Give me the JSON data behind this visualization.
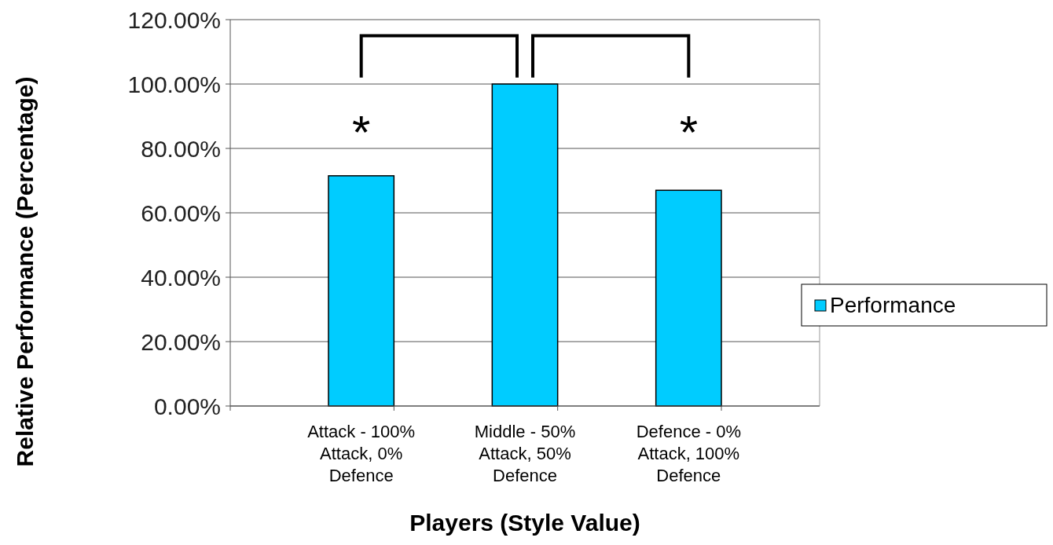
{
  "chart_data": {
    "type": "bar",
    "xlabel": "Players (Style Value)",
    "ylabel": "Relative Performance (Percentage)",
    "categories": [
      "Attack - 100% Attack, 0% Defence",
      "Middle - 50% Attack, 50% Defence",
      "Defence - 0% Attack, 100% Defence"
    ],
    "series": [
      {
        "name": "Performance",
        "color": "#00ccff",
        "values": [
          71.5,
          100,
          67
        ]
      }
    ],
    "ylim": [
      0,
      120
    ],
    "yticks": [
      {
        "value": 0,
        "label": "0.00%"
      },
      {
        "value": 20,
        "label": "20.00%"
      },
      {
        "value": 40,
        "label": "40.00%"
      },
      {
        "value": 60,
        "label": "60.00%"
      },
      {
        "value": 80,
        "label": "80.00%"
      },
      {
        "value": 100,
        "label": "100.00%"
      },
      {
        "value": 120,
        "label": "120.00%"
      }
    ],
    "grid": "y",
    "legend": "right",
    "annotations": [
      "*",
      "*"
    ]
  }
}
